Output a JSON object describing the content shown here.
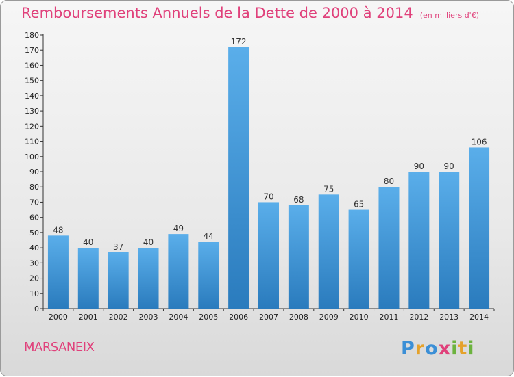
{
  "title": "Remboursements Annuels de la Dette de 2000 à 2014",
  "unit": "(en milliers d'€)",
  "commune": "MARSANEIX",
  "logo": "Proxiti",
  "colors": {
    "title": "#e0417b",
    "bar_top": "#5aaeea",
    "bar_bottom": "#2a7bbd",
    "axis": "#333333",
    "grid": "#c8c8c8"
  },
  "chart_data": {
    "type": "bar",
    "categories": [
      "2000",
      "2001",
      "2002",
      "2003",
      "2004",
      "2005",
      "2006",
      "2007",
      "2008",
      "2009",
      "2010",
      "2011",
      "2012",
      "2013",
      "2014"
    ],
    "values": [
      48,
      40,
      37,
      40,
      49,
      44,
      172,
      70,
      68,
      75,
      65,
      80,
      90,
      90,
      106
    ],
    "title": "Remboursements Annuels de la Dette de 2000 à 2014",
    "ylim": [
      0,
      180
    ],
    "yticks": [
      0,
      10,
      20,
      30,
      40,
      50,
      60,
      70,
      80,
      90,
      100,
      110,
      120,
      130,
      140,
      150,
      160,
      170,
      180
    ],
    "grid": false,
    "data_labels": true
  }
}
